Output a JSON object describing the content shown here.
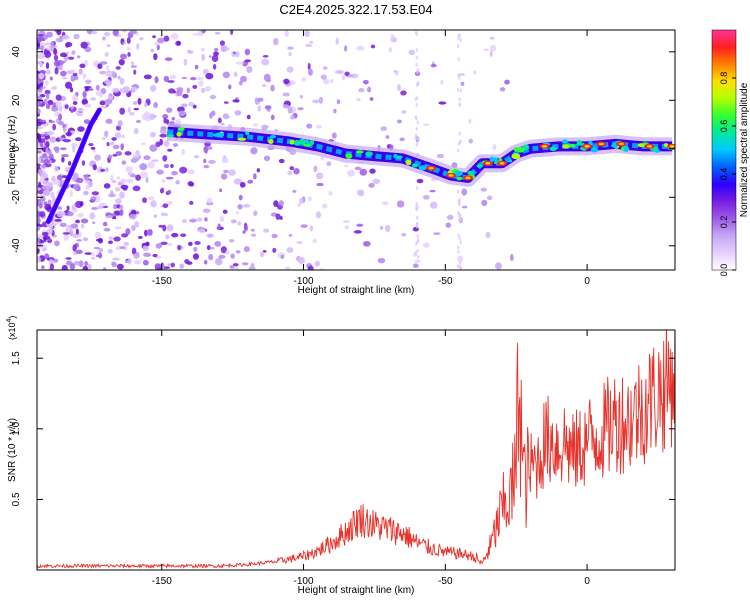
{
  "chart_data": [
    {
      "type": "heatmap",
      "title": "C2E4.2025.322.17.53.E04",
      "xlabel": "Height of straight line (km)",
      "ylabel": "Frequency (Hz)",
      "xlim": [
        -194,
        31
      ],
      "ylim": [
        -50,
        49
      ],
      "xticks": [
        -150,
        -100,
        -50,
        0
      ],
      "yticks": [
        -40,
        -20,
        0,
        20,
        40
      ],
      "colorbar": {
        "label": "Normalized spectral amplitude",
        "range": [
          0,
          1
        ],
        "ticks": [
          "0.0",
          "0.2",
          "0.4",
          "0.6",
          "0.8"
        ],
        "colors": [
          "#ffffff",
          "#e6d0ff",
          "#c7a6f5",
          "#9b5bea",
          "#7a1ee0",
          "#2d00ff",
          "#0060ff",
          "#00c8ff",
          "#00e8a0",
          "#30ff30",
          "#b0ff00",
          "#ffe000",
          "#ff8000",
          "#ff2020",
          "#ff3399"
        ]
      },
      "ridge_main": [
        [
          -148,
          7
        ],
        [
          -135,
          6
        ],
        [
          -120,
          5
        ],
        [
          -105,
          3
        ],
        [
          -95,
          1
        ],
        [
          -85,
          -2
        ],
        [
          -75,
          -3
        ],
        [
          -65,
          -4
        ],
        [
          -55,
          -8
        ],
        [
          -48,
          -11
        ],
        [
          -42,
          -12
        ],
        [
          -37,
          -6
        ],
        [
          -30,
          -6
        ],
        [
          -25,
          -2
        ],
        [
          -20,
          0
        ],
        [
          -10,
          1
        ],
        [
          0,
          1
        ],
        [
          10,
          2
        ],
        [
          20,
          1
        ],
        [
          30,
          1
        ]
      ],
      "ridge_diagonal": [
        [
          -190,
          -30
        ],
        [
          -182,
          -10
        ],
        [
          -175,
          10
        ],
        [
          -172,
          16
        ]
      ],
      "hot_spots": [
        [
          -55,
          -8
        ],
        [
          -48,
          -11
        ],
        [
          -42,
          -12
        ],
        [
          -35,
          -6
        ],
        [
          -30,
          -6
        ],
        [
          -15,
          1
        ],
        [
          0,
          1
        ],
        [
          5,
          2
        ],
        [
          12,
          2
        ],
        [
          22,
          1
        ],
        [
          30,
          1
        ]
      ]
    },
    {
      "type": "line",
      "xlabel": "Height of straight line (km)",
      "ylabel": "SNR (10 * v/v)",
      "yscale_label": "(x10",
      "yscale_exp": "4",
      "yscale_close": ")",
      "xlim": [
        -194,
        31
      ],
      "ylim": [
        0,
        1.7
      ],
      "xticks": [
        -150,
        -100,
        -50,
        0
      ],
      "yticks": [
        "0.5",
        "1.0",
        "1.5"
      ],
      "color": "#e8312a",
      "series": [
        {
          "name": "SNR",
          "x": [
            -194,
            -180,
            -160,
            -140,
            -130,
            -120,
            -110,
            -100,
            -95,
            -90,
            -85,
            -80,
            -75,
            -70,
            -65,
            -60,
            -55,
            -50,
            -45,
            -40,
            -37,
            -34,
            -30,
            -27,
            -25,
            -24,
            -23,
            -22,
            -20,
            -17,
            -15,
            -12,
            -10,
            -8,
            -5,
            -2,
            0,
            5,
            10,
            15,
            20,
            25,
            28,
            31
          ],
          "y": [
            0.03,
            0.03,
            0.03,
            0.03,
            0.03,
            0.04,
            0.06,
            0.1,
            0.14,
            0.2,
            0.28,
            0.38,
            0.33,
            0.3,
            0.27,
            0.2,
            0.16,
            0.13,
            0.12,
            0.1,
            0.05,
            0.18,
            0.45,
            0.55,
            0.75,
            1.65,
            0.9,
            0.65,
            0.75,
            0.8,
            0.95,
            0.95,
            0.9,
            0.95,
            0.85,
            0.9,
            0.95,
            1.0,
            1.1,
            1.1,
            1.2,
            1.3,
            1.35,
            1.45
          ]
        }
      ]
    }
  ]
}
